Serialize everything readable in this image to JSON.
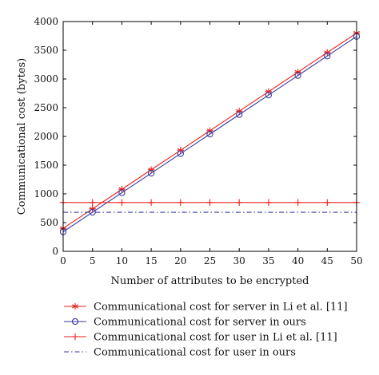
{
  "chart_data": {
    "type": "line",
    "xlabel": "Number of attributes to be encrypted",
    "ylabel": "Communicational cost (bytes)",
    "xlim": [
      0,
      50
    ],
    "ylim": [
      0,
      4000
    ],
    "x_ticks": [
      "0",
      "5",
      "10",
      "15",
      "20",
      "25",
      "30",
      "35",
      "40",
      "45",
      "50"
    ],
    "y_ticks": [
      "0",
      "500",
      "1000",
      "1500",
      "2000",
      "2500",
      "3000",
      "3500",
      "4000"
    ],
    "grid": false,
    "legend_placement": "bottom",
    "x": [
      0,
      5,
      10,
      15,
      20,
      25,
      30,
      35,
      40,
      45,
      50
    ],
    "series": [
      {
        "name": "Communicational cost for server in Li et al. [11]",
        "color": "#e8231f",
        "marker": "asterisk",
        "line": "solid",
        "values": [
          400,
          740,
          1080,
          1420,
          1760,
          2100,
          2440,
          2780,
          3120,
          3460,
          3800
        ]
      },
      {
        "name": "Communicational cost for server in ours",
        "color": "#3a3a9e",
        "marker": "circle",
        "line": "solid",
        "values": [
          340,
          680,
          1020,
          1360,
          1700,
          2040,
          2380,
          2720,
          3060,
          3400,
          3740
        ]
      },
      {
        "name": "Communicational cost for user in Li et al. [11]",
        "color": "#e8231f",
        "marker": "plus",
        "line": "solid",
        "values": [
          850,
          850,
          850,
          850,
          850,
          850,
          850,
          850,
          850,
          850,
          850
        ]
      },
      {
        "name": "Communicational cost for user in ours",
        "color": "#3a3a9e",
        "marker": "none",
        "line": "dashdot",
        "values": [
          680,
          680,
          680,
          680,
          680,
          680,
          680,
          680,
          680,
          680,
          680
        ]
      }
    ]
  }
}
